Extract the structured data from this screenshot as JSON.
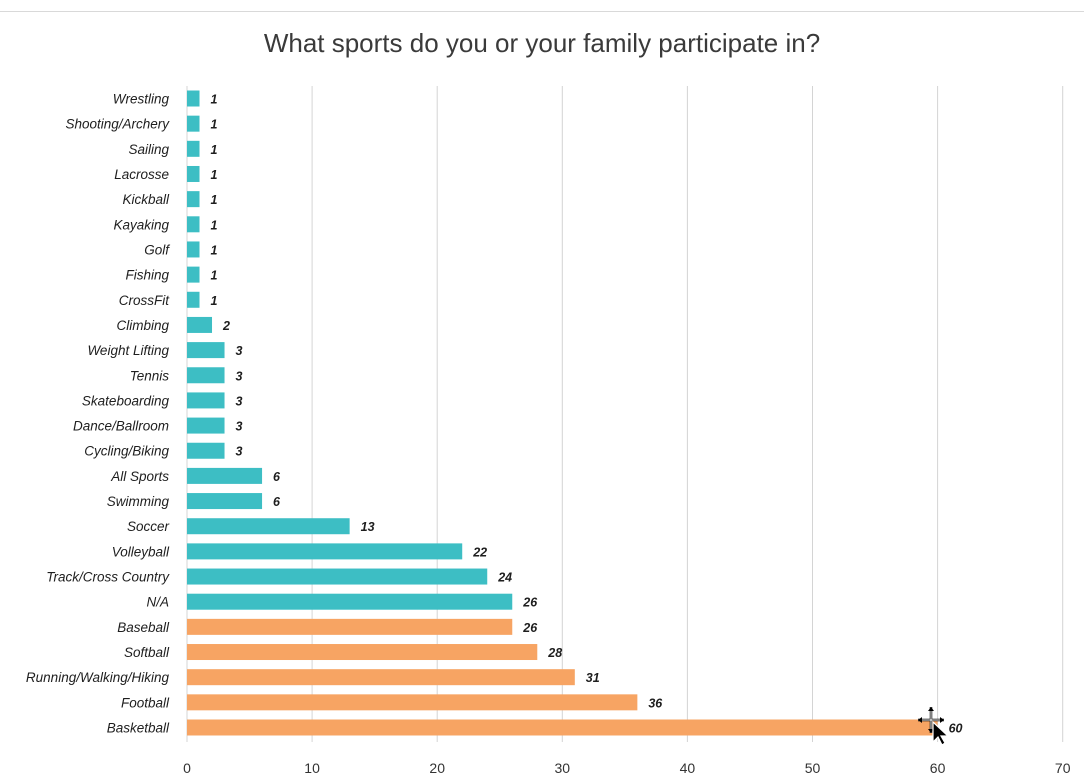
{
  "chart_data": {
    "type": "bar",
    "orientation": "horizontal",
    "title": "What sports do you or your family participate in?",
    "xlabel": "",
    "ylabel": "",
    "xlim": [
      0,
      70
    ],
    "xticks": [
      0,
      10,
      20,
      30,
      40,
      50,
      60,
      70
    ],
    "grid": true,
    "categories": [
      "Wrestling",
      "Shooting/Archery",
      "Sailing",
      "Lacrosse",
      "Kickball",
      "Kayaking",
      "Golf",
      "Fishing",
      "CrossFit",
      "Climbing",
      "Weight Lifting",
      "Tennis",
      "Skateboarding",
      "Dance/Ballroom",
      "Cycling/Biking",
      "All Sports",
      "Swimming",
      "Soccer",
      "Volleyball",
      "Track/Cross Country",
      "N/A",
      "Baseball",
      "Softball",
      "Running/Walking/Hiking",
      "Football",
      "Basketball"
    ],
    "values": [
      1,
      1,
      1,
      1,
      1,
      1,
      1,
      1,
      1,
      2,
      3,
      3,
      3,
      3,
      3,
      6,
      6,
      13,
      22,
      24,
      26,
      26,
      28,
      31,
      36,
      60
    ],
    "colors": [
      "#3dbec4",
      "#3dbec4",
      "#3dbec4",
      "#3dbec4",
      "#3dbec4",
      "#3dbec4",
      "#3dbec4",
      "#3dbec4",
      "#3dbec4",
      "#3dbec4",
      "#3dbec4",
      "#3dbec4",
      "#3dbec4",
      "#3dbec4",
      "#3dbec4",
      "#3dbec4",
      "#3dbec4",
      "#3dbec4",
      "#3dbec4",
      "#3dbec4",
      "#3dbec4",
      "#f7a463",
      "#f7a463",
      "#f7a463",
      "#f7a463",
      "#f7a463"
    ],
    "gridline_color": "#d4d4d4"
  },
  "cursor": {
    "icon": "move-cursor-icon"
  }
}
